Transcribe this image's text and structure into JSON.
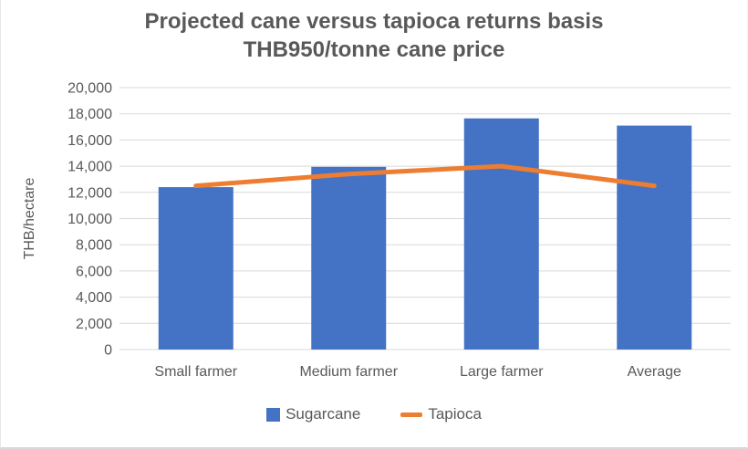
{
  "chart_data": {
    "type": "bar",
    "title": "Projected cane versus tapioca returns basis THB950/tonne cane price",
    "title_lines": [
      "Projected cane versus tapioca returns basis",
      "THB950/tonne cane price"
    ],
    "categories": [
      "Small farmer",
      "Medium farmer",
      "Large farmer",
      "Average"
    ],
    "series": [
      {
        "name": "Sugarcane",
        "type": "bar",
        "color": "#4472C4",
        "values": [
          12400,
          13950,
          17650,
          17100
        ]
      },
      {
        "name": "Tapioca",
        "type": "line",
        "color": "#ED7D31",
        "values": [
          12500,
          13400,
          14000,
          12500
        ]
      }
    ],
    "xlabel": "",
    "ylabel": "THB/hectare",
    "ylim": [
      0,
      20000
    ],
    "y_tick_step": 2000,
    "y_ticks": [
      0,
      2000,
      4000,
      6000,
      8000,
      10000,
      12000,
      14000,
      16000,
      18000,
      20000
    ],
    "y_tick_labels": [
      "0",
      "2,000",
      "4,000",
      "6,000",
      "8,000",
      "10,000",
      "12,000",
      "14,000",
      "16,000",
      "18,000",
      "20,000"
    ],
    "grid": true,
    "legend_position": "bottom"
  },
  "colors": {
    "bar": "#4472C4",
    "line": "#ED7D31",
    "gridline": "#D9D9D9",
    "text": "#595959",
    "title": "#595959",
    "background": "#FFFFFF"
  },
  "legend": {
    "items": [
      {
        "label": "Sugarcane",
        "swatch": "square",
        "color": "#4472C4"
      },
      {
        "label": "Tapioca",
        "swatch": "line",
        "color": "#ED7D31"
      }
    ]
  }
}
